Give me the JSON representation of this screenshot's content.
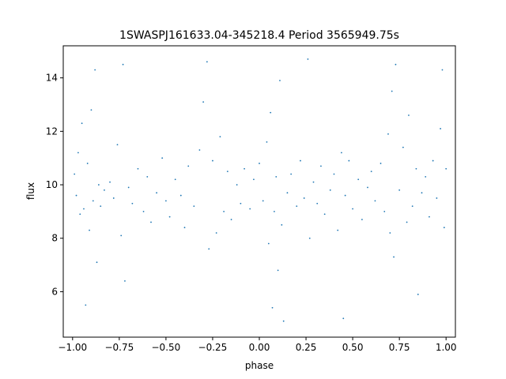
{
  "chart_data": {
    "type": "scatter",
    "title": "1SWASPJ161633.04-345218.4 Period 3565949.75s",
    "xlabel": "phase",
    "ylabel": "flux",
    "xlim": [
      -1.05,
      1.05
    ],
    "ylim": [
      4.3,
      15.2
    ],
    "xticks": [
      "−1.00",
      "−0.75",
      "−0.50",
      "−0.25",
      "0.00",
      "0.25",
      "0.50",
      "0.75",
      "1.00"
    ],
    "xtick_values": [
      -1.0,
      -0.75,
      -0.5,
      -0.25,
      0.0,
      0.25,
      0.5,
      0.75,
      1.0
    ],
    "yticks": [
      "6",
      "8",
      "10",
      "12",
      "14"
    ],
    "ytick_values": [
      6,
      8,
      10,
      12,
      14
    ],
    "grid": false,
    "legend": "none",
    "marker_color": "#1f77b4",
    "series": [
      {
        "description_points": "phase-folded light curve sampled points (approximate)",
        "points": [
          [
            -0.99,
            10.4
          ],
          [
            -0.98,
            9.6
          ],
          [
            -0.97,
            11.2
          ],
          [
            -0.96,
            8.9
          ],
          [
            -0.95,
            12.3
          ],
          [
            -0.94,
            9.1
          ],
          [
            -0.93,
            5.5
          ],
          [
            -0.92,
            10.8
          ],
          [
            -0.91,
            8.3
          ],
          [
            -0.9,
            12.8
          ],
          [
            -0.89,
            9.4
          ],
          [
            -0.88,
            14.3
          ],
          [
            -0.87,
            7.1
          ],
          [
            -0.86,
            10.0
          ],
          [
            -0.85,
            9.2
          ],
          [
            -0.83,
            9.8
          ],
          [
            -0.8,
            10.1
          ],
          [
            -0.78,
            9.5
          ],
          [
            -0.76,
            11.5
          ],
          [
            -0.74,
            8.1
          ],
          [
            -0.73,
            14.5
          ],
          [
            -0.72,
            6.4
          ],
          [
            -0.7,
            9.9
          ],
          [
            -0.68,
            9.3
          ],
          [
            -0.65,
            10.6
          ],
          [
            -0.62,
            9.0
          ],
          [
            -0.6,
            10.3
          ],
          [
            -0.58,
            8.6
          ],
          [
            -0.55,
            9.7
          ],
          [
            -0.52,
            11.0
          ],
          [
            -0.5,
            9.4
          ],
          [
            -0.48,
            8.8
          ],
          [
            -0.45,
            10.2
          ],
          [
            -0.42,
            9.6
          ],
          [
            -0.4,
            8.4
          ],
          [
            -0.38,
            10.7
          ],
          [
            -0.35,
            9.2
          ],
          [
            -0.32,
            11.3
          ],
          [
            -0.3,
            13.1
          ],
          [
            -0.28,
            14.6
          ],
          [
            -0.27,
            7.6
          ],
          [
            -0.25,
            10.9
          ],
          [
            -0.23,
            8.2
          ],
          [
            -0.21,
            11.8
          ],
          [
            -0.19,
            9.0
          ],
          [
            -0.17,
            10.5
          ],
          [
            -0.15,
            8.7
          ],
          [
            -0.12,
            10.0
          ],
          [
            -0.1,
            9.3
          ],
          [
            -0.08,
            10.6
          ],
          [
            -0.05,
            9.1
          ],
          [
            -0.03,
            10.2
          ],
          [
            0.0,
            10.8
          ],
          [
            0.02,
            9.4
          ],
          [
            0.04,
            11.6
          ],
          [
            0.05,
            7.8
          ],
          [
            0.06,
            12.7
          ],
          [
            0.07,
            5.4
          ],
          [
            0.08,
            9.0
          ],
          [
            0.09,
            10.3
          ],
          [
            0.1,
            6.8
          ],
          [
            0.11,
            13.9
          ],
          [
            0.12,
            8.5
          ],
          [
            0.13,
            4.9
          ],
          [
            0.15,
            9.7
          ],
          [
            0.17,
            10.4
          ],
          [
            0.2,
            9.2
          ],
          [
            0.22,
            10.9
          ],
          [
            0.24,
            9.5
          ],
          [
            0.26,
            14.7
          ],
          [
            0.27,
            8.0
          ],
          [
            0.29,
            10.1
          ],
          [
            0.31,
            9.3
          ],
          [
            0.33,
            10.7
          ],
          [
            0.35,
            8.9
          ],
          [
            0.38,
            9.8
          ],
          [
            0.4,
            10.4
          ],
          [
            0.42,
            8.3
          ],
          [
            0.44,
            11.2
          ],
          [
            0.45,
            5.0
          ],
          [
            0.46,
            9.6
          ],
          [
            0.48,
            10.9
          ],
          [
            0.5,
            9.1
          ],
          [
            0.53,
            10.2
          ],
          [
            0.55,
            8.7
          ],
          [
            0.58,
            9.9
          ],
          [
            0.6,
            10.5
          ],
          [
            0.62,
            9.4
          ],
          [
            0.65,
            10.8
          ],
          [
            0.67,
            9.0
          ],
          [
            0.69,
            11.9
          ],
          [
            0.7,
            8.2
          ],
          [
            0.71,
            13.5
          ],
          [
            0.72,
            7.3
          ],
          [
            0.73,
            14.5
          ],
          [
            0.75,
            9.8
          ],
          [
            0.77,
            11.4
          ],
          [
            0.79,
            8.6
          ],
          [
            0.8,
            12.6
          ],
          [
            0.82,
            9.2
          ],
          [
            0.84,
            10.6
          ],
          [
            0.85,
            5.9
          ],
          [
            0.87,
            9.7
          ],
          [
            0.89,
            10.3
          ],
          [
            0.91,
            8.8
          ],
          [
            0.93,
            10.9
          ],
          [
            0.95,
            9.5
          ],
          [
            0.97,
            12.1
          ],
          [
            0.98,
            14.3
          ],
          [
            0.99,
            8.4
          ],
          [
            1.0,
            10.6
          ]
        ]
      }
    ]
  }
}
